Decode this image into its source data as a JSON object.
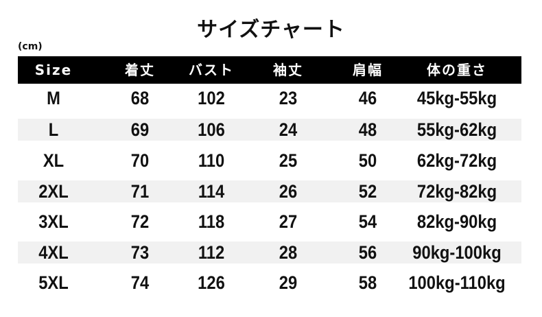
{
  "title": "サイズチャート",
  "unit": "(cm)",
  "colors": {
    "header_bg": "#000000",
    "header_text": "#ffffff",
    "band": "#f1f1f1"
  },
  "columns": [
    "Size",
    "着丈",
    "バスト",
    "袖丈",
    "肩幅",
    "体の重さ"
  ],
  "rows": [
    [
      "M",
      "68",
      "102",
      "23",
      "46",
      "45kg-55kg"
    ],
    [
      "L",
      "69",
      "106",
      "24",
      "48",
      "55kg-62kg"
    ],
    [
      "XL",
      "70",
      "110",
      "25",
      "50",
      "62kg-72kg"
    ],
    [
      "2XL",
      "71",
      "114",
      "26",
      "52",
      "72kg-82kg"
    ],
    [
      "3XL",
      "72",
      "118",
      "27",
      "54",
      "82kg-90kg"
    ],
    [
      "4XL",
      "73",
      "112",
      "28",
      "56",
      "90kg-100kg"
    ],
    [
      "5XL",
      "74",
      "126",
      "29",
      "58",
      "100kg-110kg"
    ]
  ]
}
